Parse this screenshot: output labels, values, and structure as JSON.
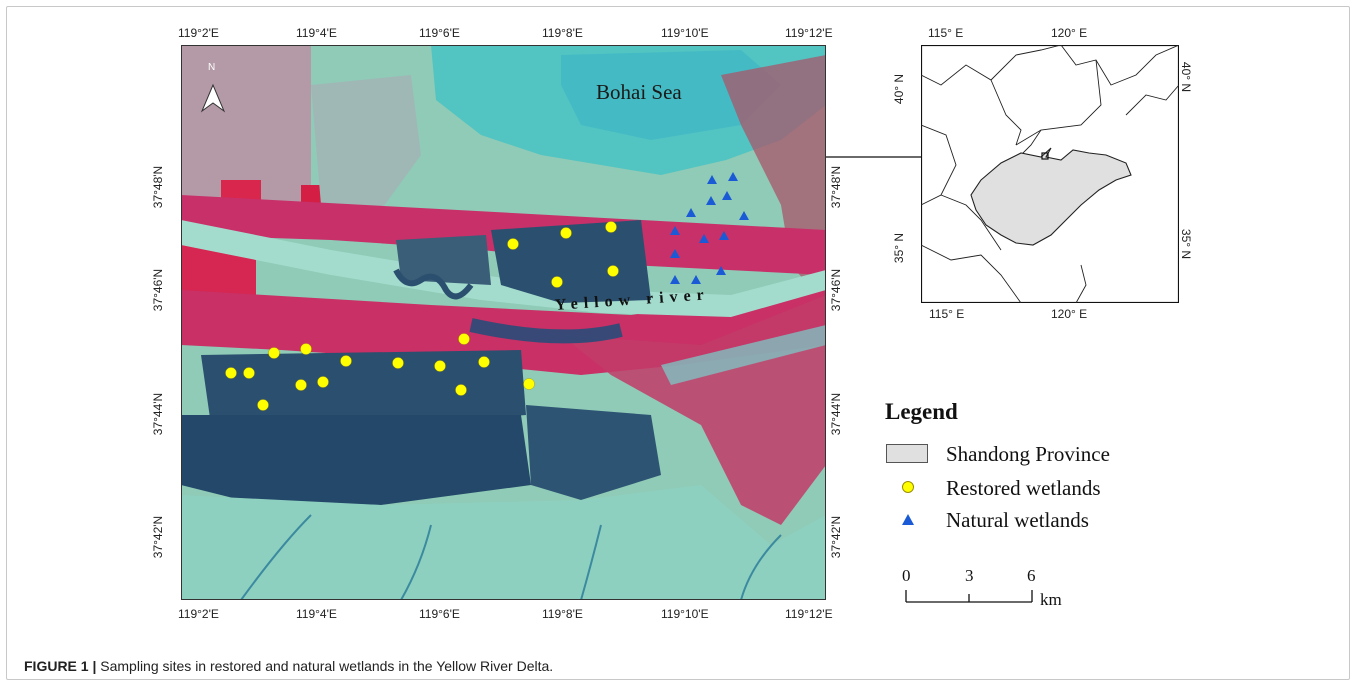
{
  "main_map": {
    "top_ticks": [
      "119°2'E",
      "119°4'E",
      "119°6'E",
      "119°8'E",
      "119°10'E",
      "119°12'E"
    ],
    "bottom_ticks": [
      "119°2'E",
      "119°4'E",
      "119°6'E",
      "119°8'E",
      "119°10'E",
      "119°12'E"
    ],
    "left_ticks": [
      "37°48'N",
      "37°46'N",
      "37°44'N",
      "37°42'N"
    ],
    "right_ticks": [
      "37°48'N",
      "37°46'N",
      "37°44'N",
      "37°42'N"
    ],
    "north_label": "N",
    "sea_label": "Bohai Sea",
    "river_label": "Yellow river",
    "colors": {
      "sea": "#52c4c2",
      "land": "#8fcbb6",
      "vegetation": "#c8306a",
      "water_ponds": "#2b4f6e",
      "river": "#9fd8cc",
      "restored_marker": "#ffff00",
      "natural_marker": "#1a5ad6"
    }
  },
  "inset_map": {
    "top_ticks": [
      "115° E",
      "120° E"
    ],
    "bottom_ticks": [
      "115° E",
      "120° E"
    ],
    "left_ticks": [
      "40° N",
      "35° N"
    ],
    "right_ticks": [
      "40° N",
      "35° N"
    ],
    "province_fill": "#e0e0e0"
  },
  "legend": {
    "title": "Legend",
    "items": [
      {
        "label": "Shandong Province"
      },
      {
        "label": "Restored wetlands"
      },
      {
        "label": "Natural wetlands"
      }
    ]
  },
  "scale_bar": {
    "ticks": [
      "0",
      "3",
      "6"
    ],
    "unit": "km"
  },
  "caption": {
    "figure_label": "FIGURE 1 |",
    "text": " Sampling sites in restored and natural wetlands in the Yellow River Delta."
  }
}
